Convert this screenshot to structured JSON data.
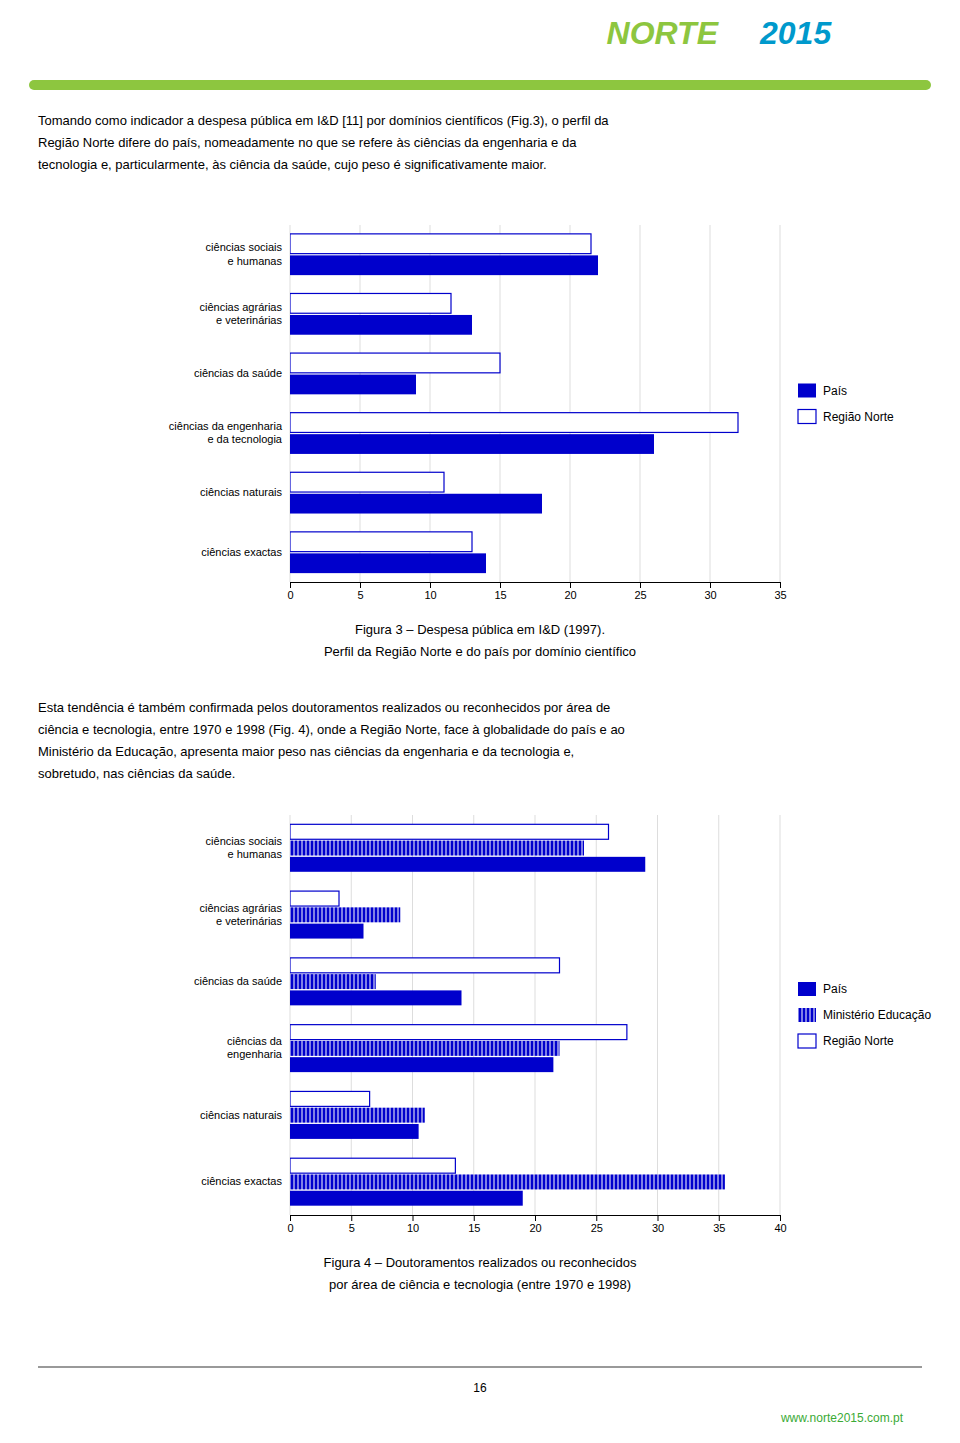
{
  "chart_data": [
    {
      "type": "bar",
      "orientation": "horizontal",
      "title": "Figura 3 – Despesa pública em I&D (1997).",
      "subtitle": "Perfil da Região Norte e do país por domínio científico",
      "categories": [
        "ciências sociais\ne humanas",
        "ciências agrárias\ne veterinárias",
        "ciências da saúde",
        "ciências da engenharia\ne da tecnologia",
        "ciências naturais",
        "ciências exactas"
      ],
      "series": [
        {
          "name": "País",
          "color": "#0000cc",
          "values": [
            22.0,
            13.0,
            9.0,
            26.0,
            18.0,
            14.0
          ]
        },
        {
          "name": "Região Norte",
          "color": "#0000cc",
          "values": [
            21.5,
            11.5,
            15.0,
            32.0,
            11.0,
            13.0
          ]
        }
      ],
      "xlim": [
        0,
        35
      ],
      "xticks": [
        0,
        5,
        10,
        15,
        20,
        25,
        30,
        35
      ],
      "grid": true,
      "legend": "right"
    },
    {
      "type": "bar",
      "orientation": "horizontal",
      "title": "Figura 4 – Doutoramentos realizados ou reconhecidos",
      "subtitle": "por área de ciência e tecnologia (entre 1970 e 1998)",
      "categories": [
        "ciências sociais\ne humanas",
        "ciências agrárias\ne veterinárias",
        "ciências da saúde",
        "ciências da\nengenharia",
        "ciências naturais",
        "ciências exactas"
      ],
      "series": [
        {
          "name": "País",
          "color": "#0000cc",
          "values": [
            29.0,
            6.0,
            14.0,
            21.5,
            10.5,
            19.0
          ]
        },
        {
          "name": "Ministério Educação",
          "color": "#0000cc",
          "values": [
            24.0,
            9.0,
            7.0,
            22.0,
            11.0,
            35.5
          ]
        },
        {
          "name": "Região Norte",
          "color": "#0000cc",
          "values": [
            26.0,
            4.0,
            22.0,
            27.5,
            6.5,
            13.5
          ]
        }
      ],
      "xlim": [
        0,
        40
      ],
      "xticks": [
        0,
        5,
        10,
        15,
        20,
        25,
        30,
        35,
        40
      ],
      "grid": true,
      "legend": "right"
    }
  ],
  "page_texts": {
    "logo": [
      {
        "text": "NORTE",
        "color": "#8dc63f"
      },
      {
        "text": "2015",
        "color": "#0099cc"
      }
    ],
    "para1_lines": [
      "Tomando como indicador a despesa pública em I&D [11] por domínios científicos (Fig.3), o perfil da",
      "Região Norte difere do país, nomeadamente no que se refere às ciências da engenharia e da",
      "tecnologia e, particularmente, às ciência da saúde, cujo peso é significativamente maior."
    ],
    "para2_lines": [
      "Esta tendência é também confirmada pelos doutoramentos realizados ou reconhecidos por área de",
      "ciência e tecnologia, entre 1970 e 1998 (Fig. 4), onde a Região Norte, face à globalidade do país e ao",
      "Ministério da Educação, apresenta maior peso nas ciências da engenharia e da tecnologia e,",
      "sobretudo, nas ciências da saúde."
    ],
    "page_number": "16",
    "footer_url": {
      "text": "www.norte2015.com.pt",
      "color": "#3aaa35"
    }
  }
}
